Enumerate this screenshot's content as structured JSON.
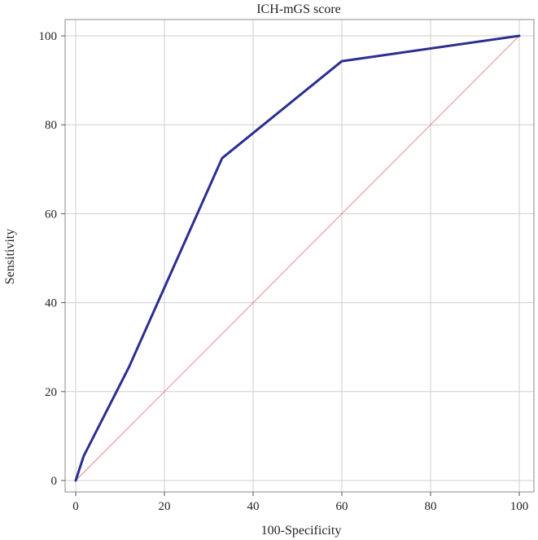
{
  "chart_data": {
    "type": "line",
    "title": "ICH-mGS score",
    "xlabel": "100-Specificity",
    "ylabel": "Sensitivity",
    "xlim": [
      0,
      100
    ],
    "ylim": [
      0,
      100
    ],
    "xticks": [
      0,
      20,
      40,
      60,
      80,
      100
    ],
    "yticks": [
      0,
      20,
      40,
      60,
      80,
      100
    ],
    "grid": true,
    "series": [
      {
        "color": "#2b2f8f",
        "x": [
          0,
          1.8,
          12,
          33,
          60,
          100
        ],
        "y": [
          0,
          5.5,
          25.5,
          72.5,
          94.3,
          100
        ]
      },
      {
        "color": "#e08080",
        "style": "reference-diagonal",
        "x": [
          0,
          100
        ],
        "y": [
          0,
          100
        ]
      }
    ]
  }
}
